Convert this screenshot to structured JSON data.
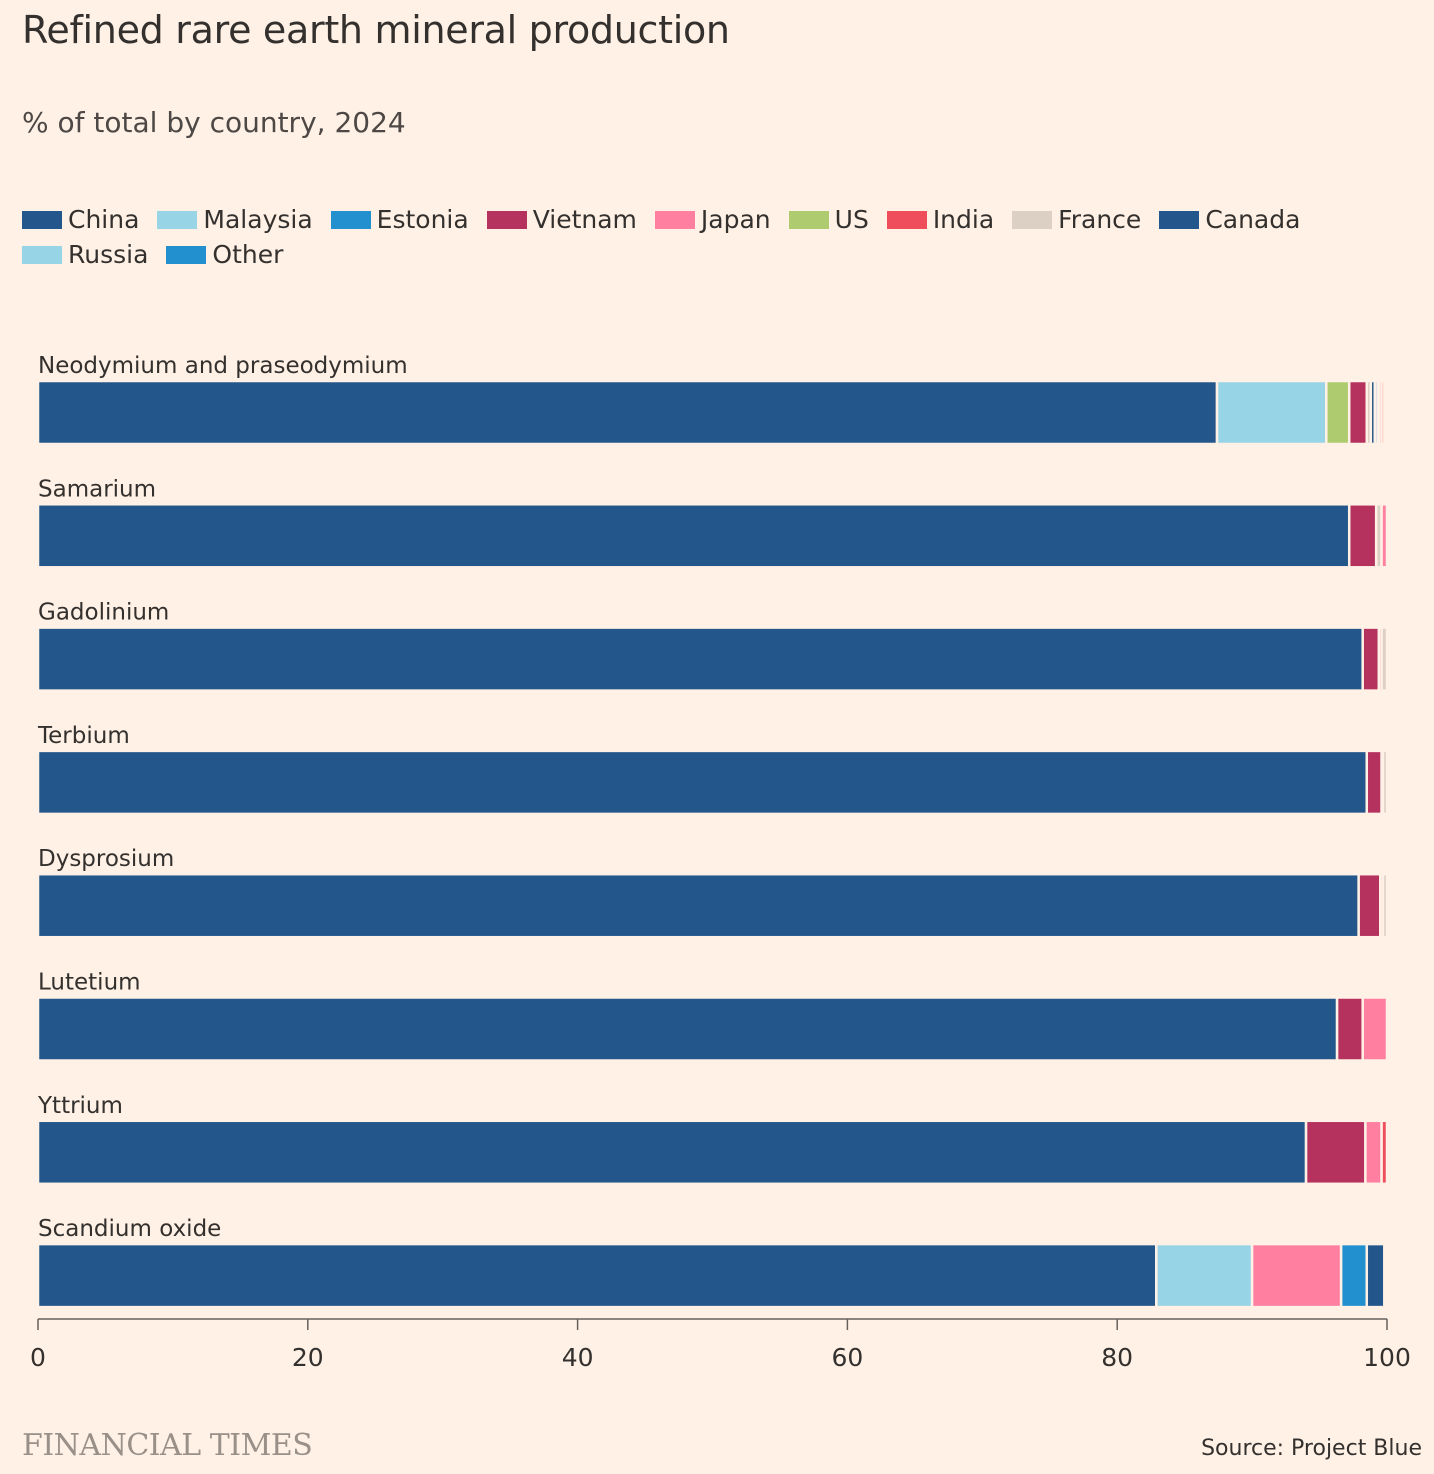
{
  "header": {
    "title": "Refined rare earth mineral production",
    "subtitle": "% of total by country, 2024"
  },
  "colors": {
    "China": "#23568b",
    "Malaysia": "#96d4e6",
    "Estonia": "#228fcf",
    "Vietnam": "#b5325f",
    "Japan": "#ff7fa1",
    "US": "#afcb6f",
    "India": "#f04d5c",
    "France": "#dccfc4",
    "Canada": "#23568b",
    "Russia": "#96d4e6",
    "Other": "#228fcf"
  },
  "legend": {
    "rows": [
      [
        "China",
        "Malaysia",
        "Estonia",
        "Vietnam",
        "Japan",
        "US",
        "India",
        "France",
        "Canada"
      ],
      [
        "Russia",
        "Other"
      ]
    ]
  },
  "chart_data": {
    "type": "bar",
    "orientation": "horizontal",
    "stacked": true,
    "title": "Refined rare earth mineral production",
    "subtitle": "% of total by country, 2024",
    "xlim": [
      0,
      100
    ],
    "xticks": [
      0,
      20,
      40,
      60,
      80,
      100
    ],
    "categories": [
      "Neodymium and praseodymium",
      "Samarium",
      "Gadolinium",
      "Terbium",
      "Dysprosium",
      "Lutetium",
      "Yttrium",
      "Scandium oxide"
    ],
    "series": [
      {
        "name": "China",
        "values": [
          87.4,
          97.2,
          98.2,
          98.5,
          97.9,
          96.3,
          94.0,
          82.9
        ]
      },
      {
        "name": "Malaysia",
        "values": [
          8.1,
          0,
          0,
          0,
          0,
          0,
          0,
          7.1
        ]
      },
      {
        "name": "Estonia",
        "values": [
          0,
          0,
          0,
          0,
          0,
          0,
          0,
          0
        ]
      },
      {
        "name": "Vietnam",
        "values": [
          1.3,
          2.0,
          1.2,
          1.1,
          1.6,
          1.9,
          4.4,
          0
        ]
      },
      {
        "name": "Japan",
        "values": [
          0.2,
          0.4,
          0.2,
          0.1,
          0.2,
          1.8,
          1.2,
          6.6
        ]
      },
      {
        "name": "US",
        "values": [
          1.7,
          0,
          0,
          0,
          0,
          0,
          0,
          0
        ]
      },
      {
        "name": "India",
        "values": [
          0.2,
          0,
          0,
          0,
          0,
          0,
          0.4,
          0
        ]
      },
      {
        "name": "France",
        "values": [
          0.3,
          0.4,
          0.4,
          0.3,
          0.3,
          0,
          0,
          0
        ]
      },
      {
        "name": "Canada",
        "values": [
          0.3,
          0,
          0,
          0,
          0,
          0,
          0,
          1.3
        ]
      },
      {
        "name": "Russia",
        "values": [
          0.1,
          0,
          0,
          0,
          0,
          0,
          0,
          0
        ]
      },
      {
        "name": "Other",
        "values": [
          0.2,
          0,
          0,
          0,
          0,
          0,
          0,
          1.9
        ]
      }
    ],
    "segment_order": [
      [
        "China",
        "Malaysia",
        "US",
        "Vietnam",
        "France",
        "Canada",
        "Other",
        "Russia",
        "Japan",
        "India"
      ],
      [
        "China",
        "Vietnam",
        "France",
        "Japan"
      ],
      [
        "China",
        "Vietnam",
        "Japan",
        "France"
      ],
      [
        "China",
        "Vietnam",
        "Japan",
        "France"
      ],
      [
        "China",
        "Vietnam",
        "Japan",
        "France"
      ],
      [
        "China",
        "Vietnam",
        "Japan"
      ],
      [
        "China",
        "Vietnam",
        "Japan",
        "India"
      ],
      [
        "China",
        "Malaysia",
        "Japan",
        "Other",
        "Canada"
      ]
    ],
    "legend_position": "top-left",
    "grid": false
  },
  "footer": {
    "brand": "FINANCIAL TIMES",
    "source": "Source: Project Blue"
  }
}
